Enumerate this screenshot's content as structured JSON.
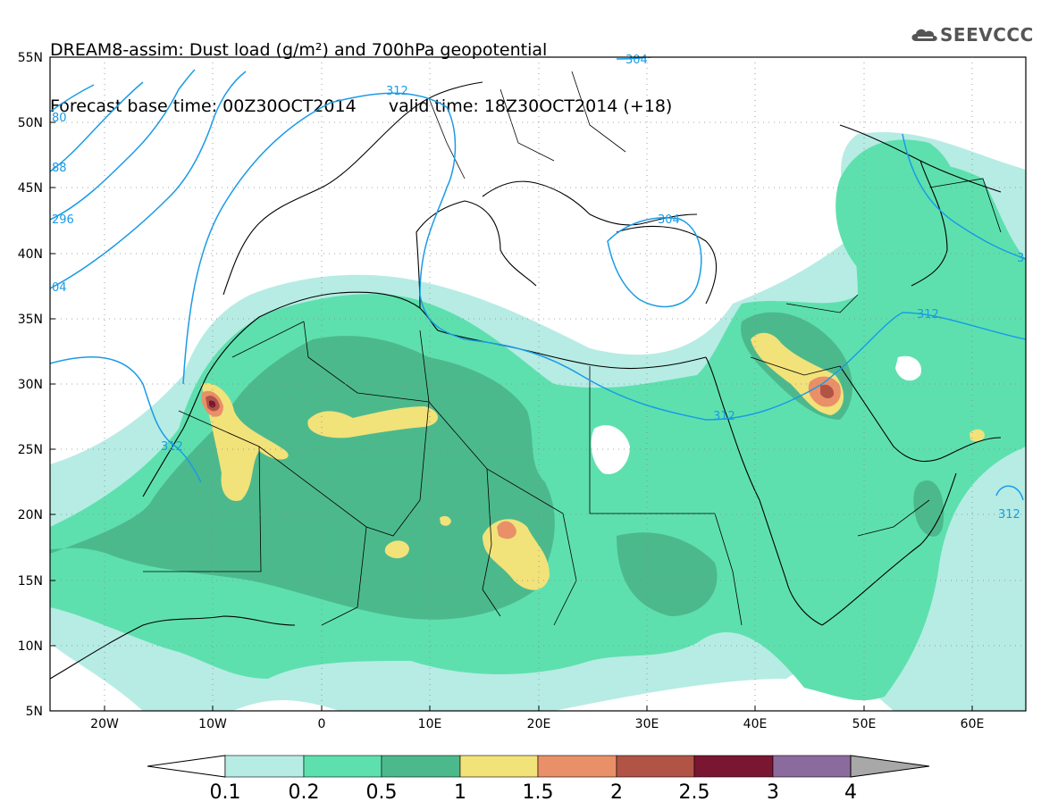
{
  "title": {
    "line1": "DREAM8-assim: Dust load (g/m²) and 700hPa geopotential",
    "line2": "Forecast base time: 00Z30OCT2014      valid time: 18Z30OCT2014 (+18)"
  },
  "logo": {
    "text": "SEEVCCC",
    "icon": "cloud-icon"
  },
  "lat_labels": [
    "55N",
    "50N",
    "45N",
    "40N",
    "35N",
    "30N",
    "25N",
    "20N",
    "15N",
    "10N",
    "5N"
  ],
  "lon_labels": [
    "20W",
    "10W",
    "0",
    "10E",
    "20E",
    "30E",
    "40E",
    "50E",
    "60E"
  ],
  "contour_labels": [
    "304",
    "312",
    "80",
    "88",
    "296",
    "04",
    "304",
    "312",
    "312",
    "312",
    "3"
  ],
  "colorbar": {
    "labels": [
      "0.1",
      "0.2",
      "0.5",
      "1",
      "1.5",
      "2",
      "2.5",
      "3",
      "4"
    ],
    "colors": [
      "#b6ece4",
      "#5ee0ae",
      "#4cb98d",
      "#f2e27a",
      "#e99068",
      "#b15446",
      "#7b1632",
      "#8b6b9e"
    ],
    "under_color": "#ffffff",
    "over_color": "#a8a8a8"
  },
  "colors": {
    "contour": "#1a9be6",
    "low_dust": "#b6ece4"
  }
}
